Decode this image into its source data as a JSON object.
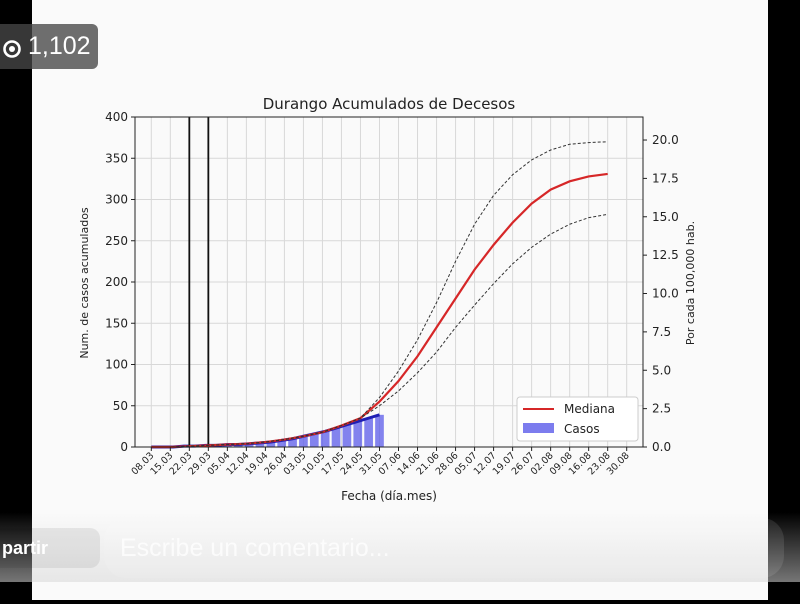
{
  "overlay": {
    "views_count": "1,102",
    "share_label": "partir",
    "comment_placeholder": "Escribe un comentario..."
  },
  "chart_data": {
    "type": "line",
    "title": "Durango Acumulados de Decesos",
    "xlabel": "Fecha (día.mes)",
    "ylabel": "Num. de casos acumulados",
    "ylabel_right": "Por cada 100,000 hab.",
    "x_ticks": [
      "08.03",
      "15.03",
      "22.03",
      "29.03",
      "05.04",
      "12.04",
      "19.04",
      "26.04",
      "03.05",
      "10.05",
      "17.05",
      "24.05",
      "31.05",
      "07.06",
      "14.06",
      "21.06",
      "28.06",
      "05.07",
      "12.07",
      "19.07",
      "26.07",
      "02.08",
      "09.08",
      "16.08",
      "23.08",
      "30.08"
    ],
    "ylim": [
      0,
      400
    ],
    "y_ticks": [
      0,
      50,
      100,
      150,
      200,
      250,
      300,
      350,
      400
    ],
    "ylim_right": [
      0,
      21.5
    ],
    "y_ticks_right": [
      "0.0",
      "2.5",
      "5.0",
      "7.5",
      "10.0",
      "12.5",
      "15.0",
      "17.5",
      "20.0"
    ],
    "grid": true,
    "vlines_day": [
      14,
      21
    ],
    "legend": {
      "placement": "bottom-right",
      "entries": [
        "Mediana",
        "Casos"
      ]
    },
    "colors": {
      "median": "#d62728",
      "band": "#333333",
      "cases": "#5b5bea",
      "cases_line": "#1f1fb4"
    },
    "series": [
      {
        "name": "Mediana",
        "x_day": [
          0,
          7,
          14,
          21,
          28,
          35,
          42,
          49,
          56,
          63,
          70,
          77,
          84,
          91,
          98,
          105,
          112,
          119,
          126,
          133,
          140,
          147,
          154,
          161,
          168
        ],
        "values": [
          0,
          0,
          1,
          2,
          3,
          4,
          6,
          9,
          13,
          18,
          26,
          35,
          55,
          80,
          110,
          145,
          180,
          215,
          245,
          272,
          295,
          312,
          322,
          328,
          331
        ]
      },
      {
        "name": "upper",
        "x_day": [
          0,
          7,
          14,
          21,
          28,
          35,
          42,
          49,
          56,
          63,
          70,
          77,
          84,
          91,
          98,
          105,
          112,
          119,
          126,
          133,
          140,
          147,
          154,
          161,
          168
        ],
        "values": [
          0,
          0,
          1,
          2,
          3,
          4,
          6,
          9,
          13,
          18,
          26,
          35,
          60,
          92,
          130,
          175,
          225,
          270,
          305,
          330,
          348,
          360,
          367,
          369,
          370
        ]
      },
      {
        "name": "lower",
        "x_day": [
          0,
          7,
          14,
          21,
          28,
          35,
          42,
          49,
          56,
          63,
          70,
          77,
          84,
          91,
          98,
          105,
          112,
          119,
          126,
          133,
          140,
          147,
          154,
          161,
          168
        ],
        "values": [
          0,
          0,
          1,
          2,
          3,
          4,
          6,
          9,
          13,
          18,
          26,
          35,
          50,
          68,
          90,
          115,
          145,
          172,
          198,
          222,
          242,
          258,
          270,
          278,
          282
        ]
      },
      {
        "name": "Casos",
        "x_day": [
          0,
          4,
          8,
          12,
          16,
          20,
          24,
          28,
          32,
          36,
          40,
          44,
          48,
          52,
          56,
          60,
          64,
          68,
          72,
          76,
          80,
          84
        ],
        "values": [
          0,
          0,
          0,
          1,
          1,
          2,
          2,
          3,
          3,
          4,
          5,
          6,
          8,
          10,
          13,
          16,
          19,
          23,
          27,
          31,
          35,
          39
        ]
      }
    ]
  }
}
